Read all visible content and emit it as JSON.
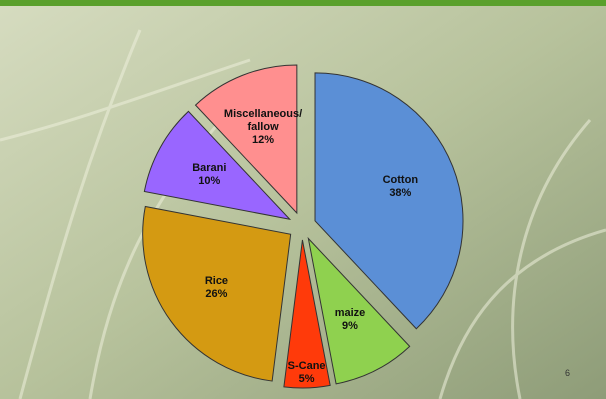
{
  "chart_data": {
    "type": "pie",
    "categories": [
      "Cotton",
      "maize",
      "S-Cane",
      "Rice",
      "Barani",
      "Miscellaneous/ fallow"
    ],
    "values": [
      38,
      9,
      5,
      26,
      10,
      12
    ],
    "value_labels": [
      "38%",
      "9%",
      "5%",
      "26%",
      "10%",
      "12%"
    ],
    "colors": [
      "#5b8fd6",
      "#8fd14f",
      "#ff3a0a",
      "#d49a12",
      "#9966ff",
      "#ff8f8f"
    ]
  },
  "page_number": 6
}
